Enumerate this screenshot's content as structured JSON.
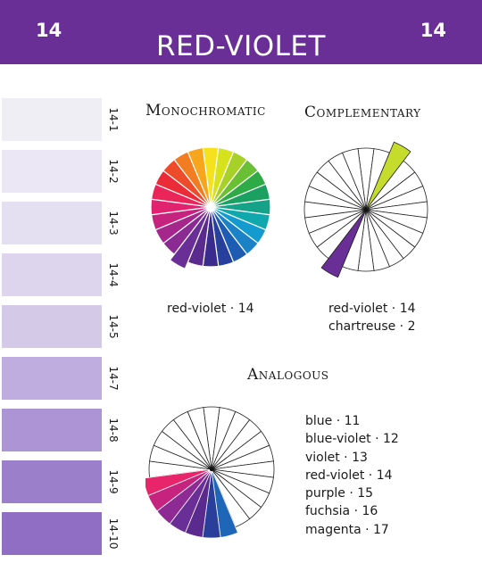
{
  "header": {
    "number_left": "14",
    "number_right": "14",
    "title": "RED-VIOLET",
    "background_color": "#6a2f97"
  },
  "swatches": [
    {
      "label": "14-1",
      "color": "#f0eef5"
    },
    {
      "label": "14-2",
      "color": "#ebe7f4"
    },
    {
      "label": "14-3",
      "color": "#e5e0f1"
    },
    {
      "label": "14-4",
      "color": "#ddd4ed"
    },
    {
      "label": "14-5",
      "color": "#d4c9e7"
    },
    {
      "label": "14-7",
      "color": "#c0ade0"
    },
    {
      "label": "14-8",
      "color": "#ad95d5"
    },
    {
      "label": "14-9",
      "color": "#9b7fcb"
    },
    {
      "label": "14-10",
      "color": "#8f6ec3"
    }
  ],
  "monochromatic": {
    "heading": "Monochromatic",
    "caption": "red-violet · 14",
    "wheel_colors": [
      "#f5e11e",
      "#d5e21c",
      "#a7d128",
      "#6bbf35",
      "#2eaa47",
      "#1aa061",
      "#16a288",
      "#10a7ad",
      "#139bd0",
      "#1b82c7",
      "#1e5cb4",
      "#27409d",
      "#3a2c8c",
      "#5a2a8e",
      "#6a2f97",
      "#8a2a92",
      "#a5278c",
      "#c6237f",
      "#e1226e",
      "#e9255a",
      "#ec2b38",
      "#ee4b2a",
      "#f27c21",
      "#f7a51c"
    ],
    "highlight_index": 14
  },
  "complementary": {
    "heading": "Complementary",
    "caption_line1": "red-violet · 14",
    "caption_line2": "chartreuse · 2",
    "highlight_colors": {
      "2": "#c5dc2c",
      "14": "#6a2f97"
    }
  },
  "analogous": {
    "heading": "Analogous",
    "items": [
      "blue · 11",
      "blue-violet · 12",
      "violet · 13",
      "red-violet · 14",
      "purple · 15",
      "fuchsia · 16",
      "magenta · 17"
    ],
    "highlight_colors": {
      "11": "#1f66b8",
      "12": "#2a3e9c",
      "13": "#5a2a8e",
      "14": "#6a2f97",
      "15": "#8e2a93",
      "16": "#c6237f",
      "17": "#e8246b"
    }
  }
}
